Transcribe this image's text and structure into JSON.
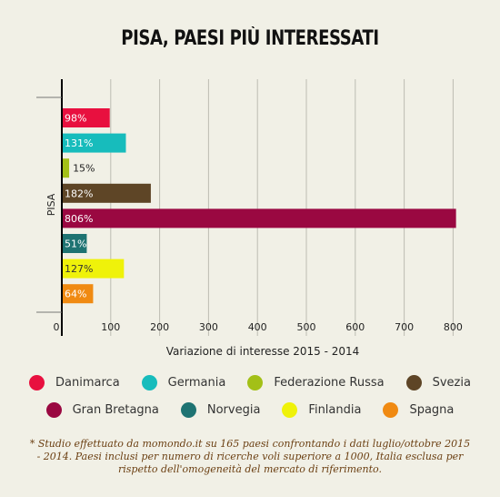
{
  "chart_data": {
    "type": "bar",
    "orientation": "horizontal",
    "title": "PISA, PAESI PIÙ INTERESSATI",
    "xlabel": "Variazione di interesse 2015 - 2014",
    "ylabel": "PISA",
    "xlim": [
      0,
      800
    ],
    "xticks": [
      "0",
      "100",
      "200",
      "300",
      "400",
      "500",
      "600",
      "700",
      "800"
    ],
    "grid": true,
    "series": [
      {
        "name": "Danimarca",
        "value": 98,
        "label": "98%",
        "color": "#e8103f"
      },
      {
        "name": "Germania",
        "value": 131,
        "label": "131%",
        "color": "#17bcbc"
      },
      {
        "name": "Federazione Russa",
        "value": 15,
        "label": "15%",
        "color": "#a3c017"
      },
      {
        "name": "Svezia",
        "value": 182,
        "label": "182%",
        "color": "#5e4526"
      },
      {
        "name": "Gran Bretagna",
        "value": 806,
        "label": "806%",
        "color": "#9a0841"
      },
      {
        "name": "Norvegia",
        "value": 51,
        "label": "51%",
        "color": "#1e7372"
      },
      {
        "name": "Finlandia",
        "value": 127,
        "label": "127%",
        "color": "#eff20a"
      },
      {
        "name": "Spagna",
        "value": 64,
        "label": "64%",
        "color": "#f08a12"
      }
    ],
    "legend_position": "bottom"
  },
  "footnote": "* Studio effettuato da momondo.it su 165 paesi confrontando i dati luglio/ottobre 2015 - 2014. Paesi inclusi per numero di ricerche voli superiore a 1000, Italia esclusa per rispetto dell'omogeneità del mercato di riferimento."
}
